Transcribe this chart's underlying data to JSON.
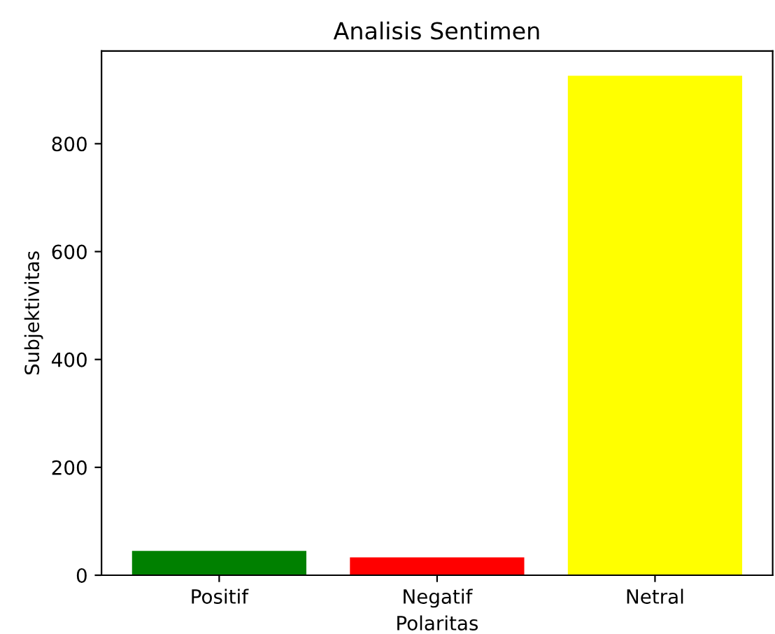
{
  "chart_data": {
    "type": "bar",
    "title": "Analisis Sentimen",
    "xlabel": "Polaritas",
    "ylabel": "Subjektivitas",
    "categories": [
      "Positif",
      "Negatif",
      "Netral"
    ],
    "values": [
      45,
      33,
      926
    ],
    "colors": [
      "#008000",
      "#ff0000",
      "#ffff00"
    ],
    "ylim": [
      0,
      972
    ],
    "yticks": [
      0,
      200,
      400,
      600,
      800
    ],
    "grid": false
  }
}
